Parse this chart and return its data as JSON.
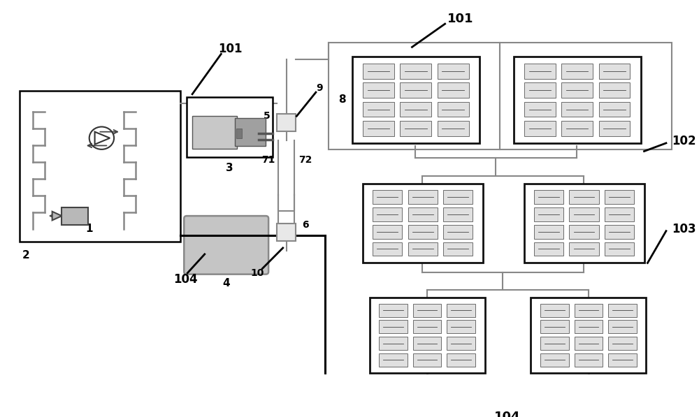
{
  "bg_color": "#ffffff",
  "lc": "#000000",
  "lg": "#aaaaaa",
  "lm": "#888888",
  "lw_main": 1.5,
  "lw_thick": 2.2,
  "lw_thin": 1.0,
  "fig_w": 10.0,
  "fig_h": 5.97,
  "dpi": 100
}
